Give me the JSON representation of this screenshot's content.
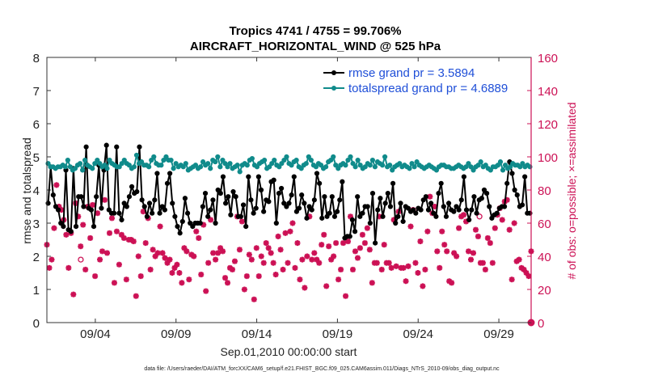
{
  "chart_data": {
    "type": "line",
    "title_line1": "Tropics 4741 / 4755 = 99.706%",
    "title_line2": "AIRCRAFT_HORIZONTAL_WIND @ 525 hPa",
    "xlabel": "Sep.01,2010 00:00:00 start",
    "ylabel_left": "rmse and totalspread",
    "ylabel_right": "# of obs: o=possible; ×=assimilated",
    "footer": "data file: /Users/raeder/DAI/ATM_forcXX/CAM6_setup/f.e21.FHIST_BGC.f09_025.CAM6assim.011/Diags_NTrS_2010-09/obs_diag_output.nc",
    "xlim": [
      1.0,
      31.0
    ],
    "ylim_left": [
      0,
      8
    ],
    "ylim_right": [
      0,
      160
    ],
    "xticks": [
      {
        "value": 4.0,
        "label": "09/04"
      },
      {
        "value": 9.0,
        "label": "09/09"
      },
      {
        "value": 14.0,
        "label": "09/14"
      },
      {
        "value": 19.0,
        "label": "09/19"
      },
      {
        "value": 24.0,
        "label": "09/24"
      },
      {
        "value": 29.0,
        "label": "09/29"
      }
    ],
    "yticks_left": [
      0,
      1,
      2,
      3,
      4,
      5,
      6,
      7,
      8
    ],
    "yticks_right": [
      0,
      20,
      40,
      60,
      80,
      100,
      120,
      140,
      160
    ],
    "colors": {
      "rmse": "#000000",
      "spread": "#108b8b",
      "obs": "#cc1155",
      "legend_text": "#1f4fd8",
      "right_axis": "#cc1155"
    },
    "series": [
      {
        "name": "rmse grand pr = 3.5894",
        "axis": "left",
        "values": [
          3.6,
          4.7,
          3.85,
          3.5,
          3.4,
          3.0,
          2.9,
          4.6,
          2.8,
          2.75,
          4.65,
          2.9,
          3.8,
          3.8,
          3.5,
          5.3,
          3.45,
          3.4,
          2.9,
          3.8,
          4.75,
          3.45,
          4.6,
          5.35,
          3.4,
          3.3,
          3.3,
          5.3,
          3.3,
          3.1,
          3.6,
          3.5,
          3.8,
          4.1,
          3.9,
          3.95,
          5.3,
          3.7,
          3.5,
          3.2,
          3.6,
          3.3,
          3.7,
          4.5,
          3.3,
          3.5,
          3.4,
          4.2,
          4.5,
          3.6,
          3.2,
          2.9,
          2.7,
          3.05,
          3.75,
          3.3,
          3.0,
          2.9,
          3.0,
          3.0,
          3.0,
          3.5,
          3.9,
          3.2,
          3.4,
          3.7,
          3.0,
          4.0,
          3.9,
          4.4,
          3.6,
          3.8,
          3.25,
          3.95,
          3.8,
          3.2,
          3.2,
          3.55,
          2.9,
          4.4,
          3.7,
          3.3,
          3.45,
          4.4,
          4.0,
          3.35,
          3.7,
          3.65,
          4.25,
          4.3,
          3.0,
          3.9,
          4.05,
          3.6,
          3.5,
          3.6,
          3.85,
          4.4,
          3.35,
          3.45,
          3.85,
          3.6,
          3.15,
          3.5,
          3.4,
          3.7,
          4.5,
          4.2,
          3.15,
          3.8,
          3.2,
          3.3,
          3.8,
          3.2,
          3.35,
          3.7,
          4.25,
          2.55,
          2.6,
          2.6,
          3.1,
          2.75,
          3.8,
          3.2,
          3.3,
          3.5,
          3.5,
          3.0,
          3.9,
          2.4,
          3.4,
          3.75,
          3.2,
          3.6,
          3.9,
          3.5,
          4.2,
          3.0,
          3.2,
          3.6,
          3.05,
          3.5,
          3.45,
          3.35,
          3.4,
          3.3,
          3.45,
          3.4,
          3.7,
          3.8,
          3.4,
          3.6,
          3.3,
          3.2,
          3.9,
          4.2,
          3.5,
          3.2,
          3.6,
          3.4,
          3.35,
          3.5,
          3.4,
          3.7,
          4.4,
          3.4,
          3.1,
          3.4,
          3.8,
          3.3,
          3.7,
          3.75,
          4.0,
          3.9,
          3.5,
          3.15,
          3.25,
          3.3,
          3.45,
          3.5,
          3.5,
          4.2,
          4.85,
          4.5,
          4.0,
          3.85,
          3.5,
          3.55,
          4.4,
          3.3,
          3.3
        ],
        "labels_hidden": true
      },
      {
        "name": "totalspread grand pr = 4.6889",
        "axis": "left",
        "values": [
          4.8,
          4.7,
          4.7,
          4.65,
          4.7,
          4.7,
          4.75,
          4.7,
          4.9,
          4.7,
          4.6,
          4.65,
          4.75,
          4.8,
          4.6,
          4.9,
          4.75,
          4.7,
          4.65,
          4.8,
          4.9,
          4.8,
          4.7,
          4.75,
          4.65,
          4.9,
          4.8,
          4.75,
          4.7,
          4.7,
          4.8,
          4.9,
          4.8,
          4.75,
          4.65,
          4.7,
          5.05,
          4.8,
          4.85,
          4.75,
          4.75,
          4.7,
          4.9,
          5.0,
          4.8,
          4.75,
          4.75,
          4.9,
          5.0,
          4.9,
          4.9,
          4.65,
          4.8,
          4.7,
          4.75,
          4.7,
          4.8,
          4.6,
          4.65,
          4.7,
          4.75,
          4.65,
          4.7,
          4.85,
          4.75,
          4.8,
          4.65,
          4.9,
          4.85,
          5.0,
          4.7,
          4.9,
          4.8,
          4.7,
          4.8,
          4.65,
          4.7,
          4.75,
          4.55,
          4.75,
          4.8,
          4.75,
          4.9,
          4.95,
          4.75,
          4.7,
          4.8,
          4.85,
          4.9,
          4.65,
          4.7,
          4.8,
          4.9,
          4.75,
          4.7,
          4.8,
          4.9,
          5.0,
          4.8,
          4.75,
          4.85,
          4.9,
          4.7,
          4.65,
          4.75,
          4.8,
          5.0,
          4.9,
          4.75,
          4.7,
          4.8,
          4.75,
          4.65,
          4.7,
          4.85,
          4.9,
          5.0,
          4.75,
          4.65,
          4.75,
          4.8,
          4.75,
          4.9,
          5.0,
          4.8,
          4.7,
          4.9,
          4.75,
          4.65,
          4.7,
          4.8,
          4.75,
          4.9,
          4.7,
          4.85,
          4.8,
          4.75,
          5.0,
          4.7,
          4.75,
          4.6,
          4.7,
          4.75,
          4.8,
          4.7,
          4.75,
          4.7,
          4.65,
          4.8,
          4.7,
          4.85,
          4.75,
          4.7,
          4.65,
          4.7,
          4.75,
          4.7,
          4.65,
          4.6,
          4.7,
          4.75,
          4.75,
          4.7,
          4.7,
          4.65,
          4.65,
          4.7,
          4.75,
          4.7,
          4.65,
          4.7,
          4.8,
          4.7,
          4.6,
          4.7,
          4.75,
          4.85,
          4.7,
          4.75,
          4.65,
          4.6,
          4.7,
          4.7,
          4.75,
          4.85,
          4.6,
          4.75,
          4.65,
          4.7,
          4.8,
          4.75,
          4.75,
          4.7,
          4.8,
          4.7,
          4.75,
          4.7
        ],
        "labels_hidden": true
      }
    ],
    "obs_count": {
      "axis": "right",
      "name": "# of obs",
      "assimilated": [
        47,
        33,
        38,
        57,
        83,
        70,
        68,
        62,
        53,
        33,
        54,
        17,
        72,
        64,
        46,
        59,
        32,
        70,
        51,
        71,
        28,
        66,
        38,
        43,
        74,
        42,
        54,
        63,
        24,
        55,
        35,
        53,
        51,
        26,
        50,
        50,
        49,
        16,
        40,
        28,
        67,
        48,
        63,
        32,
        44,
        40,
        42,
        58,
        42,
        39,
        36,
        38,
        30,
        33,
        35,
        30,
        24,
        45,
        43,
        26,
        41,
        40,
        55,
        51,
        29,
        59,
        19,
        36,
        62,
        42,
        38,
        42,
        45,
        43,
        27,
        24,
        33,
        32,
        37,
        64,
        44,
        61,
        20,
        28,
        41,
        38,
        14,
        45,
        28,
        40,
        36,
        48,
        45,
        42,
        36,
        29,
        52,
        44,
        32,
        54,
        36,
        55,
        60,
        33,
        48,
        26,
        38,
        21,
        40,
        64,
        38,
        42,
        38,
        36,
        47,
        53,
        22,
        46,
        38,
        40,
        48,
        26,
        32,
        48,
        16,
        49,
        64,
        32,
        43,
        39,
        45,
        53,
        48,
        57,
        44,
        24,
        36,
        36,
        64,
        32,
        47,
        36,
        36,
        33,
        62,
        34,
        67,
        33,
        33,
        25,
        34,
        58,
        68,
        36,
        30,
        49,
        22,
        32,
        55,
        76,
        66,
        70,
        43,
        33,
        55,
        47,
        43,
        25,
        24,
        42,
        40,
        57,
        64,
        65,
        61,
        43,
        38,
        42,
        56,
        52,
        36,
        36,
        32,
        51,
        48,
        36,
        57,
        65,
        69,
        62,
        73,
        74,
        56,
        26,
        60,
        37,
        38,
        33,
        32,
        30,
        28,
        43
      ],
      "possible_markers": [
        {
          "x": 3.1,
          "value": 38
        },
        {
          "x": 27.8,
          "value": 64
        }
      ],
      "end_marker": {
        "x": 31.0,
        "value": 0
      }
    },
    "legend_placement": "top-right"
  }
}
